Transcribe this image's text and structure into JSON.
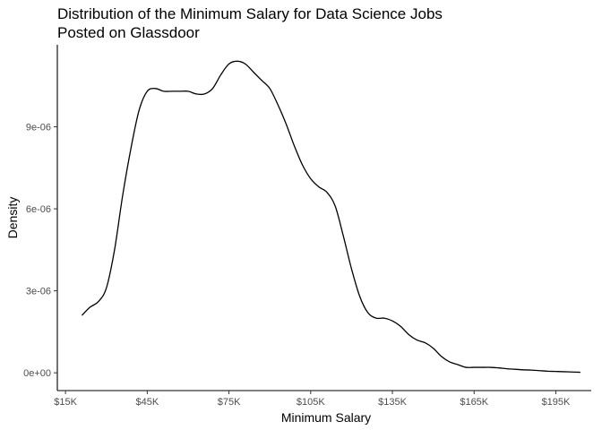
{
  "chart_data": {
    "type": "line",
    "title_lines": [
      "Distribution of the Minimum Salary for Data Science Jobs",
      "Posted on Glassdoor"
    ],
    "xlabel": "Minimum Salary",
    "ylabel": "Density",
    "xlim": [
      12,
      208
    ],
    "ylim": [
      -6.5e-07,
      1.2e-05
    ],
    "x_ticks": [
      15,
      45,
      75,
      105,
      135,
      165,
      195
    ],
    "x_tick_labels": [
      "$15K",
      "$45K",
      "$75K",
      "$105K",
      "$135K",
      "$165K",
      "$195K"
    ],
    "y_ticks": [
      0,
      3e-06,
      6e-06,
      9e-06
    ],
    "y_tick_labels": [
      "0e+00",
      "3e-06",
      "6e-06",
      "9e-06"
    ],
    "grid": false,
    "line_color": "#000000",
    "series": [
      {
        "x": [
          21,
          24,
          27,
          30,
          33,
          36,
          39,
          42,
          45,
          48,
          51,
          54,
          57,
          60,
          63,
          66,
          69,
          72,
          75,
          78,
          81,
          84,
          87,
          90,
          93,
          96,
          99,
          102,
          105,
          108,
          111,
          114,
          117,
          120,
          123,
          126,
          129,
          132,
          135,
          138,
          141,
          144,
          147,
          150,
          153,
          156,
          159,
          162,
          165,
          168,
          171,
          174,
          177,
          180,
          183,
          186,
          189,
          192,
          195,
          198,
          201,
          204
        ],
        "y": [
          2.1e-06,
          2.4e-06,
          2.6e-06,
          3.1e-06,
          4.5e-06,
          6.5e-06,
          8.2e-06,
          9.6e-06,
          1.03e-05,
          1.04e-05,
          1.03e-05,
          1.03e-05,
          1.03e-05,
          1.03e-05,
          1.02e-05,
          1.02e-05,
          1.04e-05,
          1.09e-05,
          1.13e-05,
          1.14e-05,
          1.13e-05,
          1.1e-05,
          1.07e-05,
          1.04e-05,
          9.8e-06,
          9.1e-06,
          8.3e-06,
          7.6e-06,
          7.1e-06,
          6.8e-06,
          6.6e-06,
          6.1e-06,
          5e-06,
          3.8e-06,
          2.8e-06,
          2.2e-06,
          2e-06,
          2e-06,
          1.9e-06,
          1.7e-06,
          1.4e-06,
          1.2e-06,
          1.1e-06,
          9e-07,
          6e-07,
          4e-07,
          3e-07,
          2e-07,
          2e-07,
          2e-07,
          2e-07,
          1.8e-07,
          1.5e-07,
          1.3e-07,
          1.1e-07,
          1e-07,
          8e-08,
          6e-08,
          5e-08,
          4e-08,
          3e-08,
          2e-08
        ]
      }
    ]
  }
}
